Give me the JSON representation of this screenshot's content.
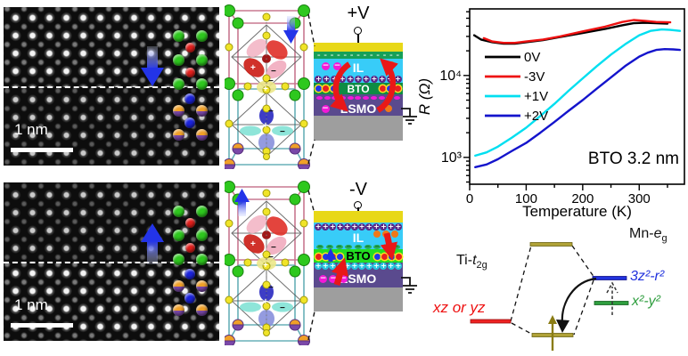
{
  "stem_top": {
    "scale_label": "1 nm",
    "polarization_arrow": "down"
  },
  "stem_bottom": {
    "scale_label": "1 nm",
    "polarization_arrow": "up"
  },
  "cell": {
    "plus": "+",
    "minus": "−"
  },
  "schem_pos": {
    "title": "+V",
    "layers": {
      "il": "IL",
      "bto": "BTO",
      "lsmo": "LSMO"
    },
    "rows": {
      "top_dashes": {
        "count": 13,
        "size": 7,
        "bg": "none",
        "fg": "#ffffff",
        "symbol": "–"
      },
      "il_anions": {
        "count": 2,
        "size": 9,
        "bg": "#f318d8",
        "fg": "#ffffff",
        "symbol": "−"
      },
      "cations": {
        "count": 11,
        "size": 8,
        "bg": "#5a2888",
        "fg": "#ffffff",
        "symbol": "+"
      },
      "bto_cluster_left": {
        "count": 3,
        "size": 7,
        "colors": [
          "#2038e8",
          "#e82020",
          "#2038e8"
        ],
        "ring": "#ffe020",
        "symbol": ""
      },
      "bto_cluster_right": {
        "count": 3,
        "size": 7,
        "colors": [
          "#e82020",
          "#2038e8",
          "#e82020"
        ],
        "ring": "#ffe020",
        "symbol": ""
      },
      "anion_dashes": {
        "count": 11,
        "size": 6,
        "h": 4,
        "w": 7,
        "bg": "#f318d8",
        "fg": "#f318d8",
        "symbol": ""
      },
      "lsmo_anions": {
        "count": 1,
        "size": 9,
        "bg": "#f318d8",
        "fg": "#ffffff",
        "symbol": "−"
      }
    }
  },
  "schem_neg": {
    "title": "-V",
    "layers": {
      "il": "IL",
      "bto": "BTO",
      "lsmo": "LSMO"
    },
    "rows": {
      "cations_top": {
        "count": 12,
        "size": 8,
        "bg": "#5a2888",
        "fg": "#ffffff",
        "symbol": "+"
      },
      "anion_dashes": {
        "count": 9,
        "size": 7,
        "h": 5,
        "w": 8,
        "bg": "#28b058",
        "fg": "#0a5a20",
        "symbol": "−"
      },
      "bto_cluster_left": {
        "count": 4,
        "size": 7,
        "colors": [
          "#e82020",
          "#2038e8",
          "#e82020",
          "#2038e8"
        ],
        "ring": "#ffe020",
        "symbol": ""
      },
      "bto_cluster_right": {
        "count": 4,
        "size": 7,
        "colors": [
          "#2038e8",
          "#e82020",
          "#2038e8",
          "#e82020"
        ],
        "ring": "#ffe020",
        "symbol": ""
      },
      "cations_bottom": {
        "count": 12,
        "size": 8,
        "bg": "#28c8e0",
        "fg": "#ffffff",
        "symbol": "+"
      },
      "lsmo_anions": {
        "count": 3,
        "size": 9,
        "bg": "#f318d8",
        "fg": "#ffffff",
        "symbol": "−"
      },
      "il_orange_dots": {
        "count": 3,
        "size": 8,
        "bg": "#f07818",
        "symbol": ""
      }
    }
  },
  "chart_data": {
    "type": "line",
    "xlabel": "Temperature (K)",
    "ylabel": "R (Ω)",
    "xlim": [
      0,
      380
    ],
    "ylim": [
      470,
      65000
    ],
    "x_ticks": [
      0,
      100,
      200,
      300
    ],
    "y_tick_labels": {
      "3": "10³",
      "4": "10⁴"
    },
    "y_scale": "log",
    "annotation": "BTO 3.2 nm",
    "legend_position": "upper-left-inside",
    "grid": false,
    "series": [
      {
        "name": "0V",
        "color": "#000000",
        "points": [
          [
            8,
            31000
          ],
          [
            20,
            27500
          ],
          [
            40,
            25500
          ],
          [
            60,
            24500
          ],
          [
            80,
            24500
          ],
          [
            100,
            25500
          ],
          [
            130,
            27000
          ],
          [
            160,
            29500
          ],
          [
            200,
            33000
          ],
          [
            240,
            37000
          ],
          [
            270,
            41000
          ],
          [
            290,
            43500
          ],
          [
            310,
            44000
          ],
          [
            330,
            43500
          ],
          [
            350,
            43000
          ]
        ]
      },
      {
        "name": "-3V",
        "color": "#ee1111",
        "points": [
          [
            25,
            28500
          ],
          [
            40,
            26000
          ],
          [
            60,
            25000
          ],
          [
            80,
            25000
          ],
          [
            100,
            26000
          ],
          [
            130,
            27500
          ],
          [
            160,
            30000
          ],
          [
            200,
            34500
          ],
          [
            240,
            39500
          ],
          [
            270,
            45000
          ],
          [
            290,
            47500
          ],
          [
            310,
            46500
          ],
          [
            330,
            45000
          ],
          [
            355,
            44500
          ]
        ]
      },
      {
        "name": "+1V",
        "color": "#00dff0",
        "points": [
          [
            10,
            1050
          ],
          [
            30,
            1150
          ],
          [
            50,
            1350
          ],
          [
            75,
            1750
          ],
          [
            100,
            2300
          ],
          [
            125,
            3200
          ],
          [
            150,
            4500
          ],
          [
            175,
            6500
          ],
          [
            200,
            9200
          ],
          [
            225,
            13000
          ],
          [
            250,
            18000
          ],
          [
            275,
            24000
          ],
          [
            300,
            31000
          ],
          [
            320,
            35000
          ],
          [
            340,
            36500
          ],
          [
            355,
            36000
          ],
          [
            372,
            35000
          ]
        ]
      },
      {
        "name": "+2V",
        "color": "#1414cc",
        "points": [
          [
            10,
            760
          ],
          [
            30,
            820
          ],
          [
            50,
            950
          ],
          [
            75,
            1200
          ],
          [
            100,
            1500
          ],
          [
            125,
            2000
          ],
          [
            150,
            2700
          ],
          [
            175,
            3700
          ],
          [
            200,
            5000
          ],
          [
            225,
            6900
          ],
          [
            250,
            9500
          ],
          [
            275,
            13000
          ],
          [
            300,
            17000
          ],
          [
            315,
            19000
          ],
          [
            330,
            20500
          ],
          [
            345,
            21000
          ],
          [
            360,
            20800
          ],
          [
            372,
            20500
          ]
        ]
      }
    ]
  },
  "energy": {
    "ti": {
      "pre": "Ti-",
      "base": "t",
      "sub": "2g"
    },
    "mn": {
      "pre": "Mn-",
      "base": "e",
      "sub": "g"
    },
    "xz": "xz or yz",
    "z2": "3z²-r²",
    "x2": "x²-y²"
  }
}
